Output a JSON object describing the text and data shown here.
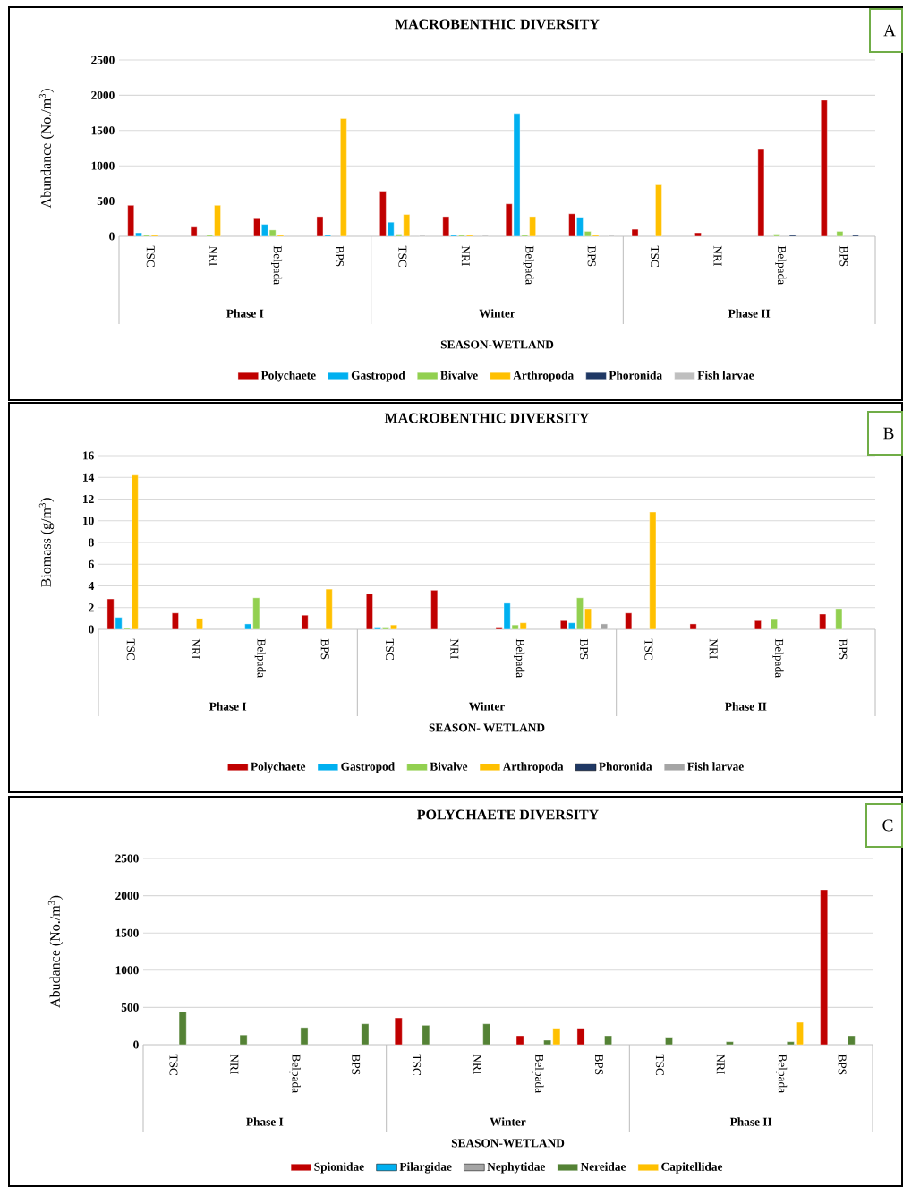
{
  "chart_data": [
    {
      "type": "bar",
      "title": "MACROBENTHIC DIVERSITY",
      "xlabel": "SEASON-WETLAND",
      "ylabel": "Abundance (No./m$^{3}$)",
      "categories": [
        "TSC",
        "NRI",
        "Belpada",
        "BPS",
        "TSC",
        "NRI",
        "Belpada",
        "BPS",
        "TSC",
        "NRI",
        "Belpada",
        "BPS"
      ],
      "series": [
        {
          "name": "Polychaete",
          "color": "#c00000",
          "values": [
            440,
            130,
            250,
            280,
            640,
            280,
            460,
            320,
            100,
            50,
            1230,
            1930
          ]
        },
        {
          "name": "Gastropod",
          "color": "#00b0f0",
          "values": [
            50,
            null,
            170,
            20,
            200,
            20,
            1740,
            270,
            null,
            null,
            null,
            null
          ]
        },
        {
          "name": "Bivalve",
          "color": "#92d050",
          "values": [
            20,
            20,
            90,
            null,
            30,
            20,
            20,
            70,
            null,
            null,
            30,
            70
          ]
        },
        {
          "name": "Arthropoda",
          "color": "#ffc000",
          "values": [
            20,
            440,
            20,
            1670,
            310,
            20,
            280,
            20,
            730,
            null,
            null,
            null
          ]
        },
        {
          "name": "Phoronida",
          "color": "#1f3864",
          "values": [
            null,
            null,
            null,
            null,
            null,
            null,
            null,
            null,
            null,
            null,
            20,
            20
          ]
        },
        {
          "name": "Fish larvae",
          "color": "#bfbfbf",
          "values": [
            null,
            null,
            null,
            null,
            20,
            20,
            null,
            20,
            null,
            null,
            null,
            null
          ]
        }
      ],
      "ylim": [
        0,
        2500
      ],
      "yticks": [
        0,
        500,
        1000,
        1500,
        2000,
        2500
      ],
      "grid": "y",
      "legend": "bottom",
      "annotations": [
        "Phase I",
        "Winter",
        "Phase II",
        "A"
      ]
    },
    {
      "type": "bar",
      "title": "MACROBENTHIC DIVERSITY",
      "xlabel": "SEASON- WETLAND",
      "ylabel": "Biomass (g/m$^{3}$)",
      "categories": [
        "TSC",
        "NRI",
        "Belpada",
        "BPS",
        "TSC",
        "NRI",
        "Belpada",
        "BPS",
        "TSC",
        "NRI",
        "Belpada",
        "BPS"
      ],
      "series": [
        {
          "name": "Polychaete",
          "color": "#c00000",
          "values": [
            2.8,
            1.5,
            null,
            1.3,
            3.3,
            3.6,
            0.2,
            0.8,
            1.5,
            0.5,
            0.8,
            1.4
          ]
        },
        {
          "name": "Gastropod",
          "color": "#00b0f0",
          "values": [
            1.1,
            null,
            0.5,
            null,
            0.2,
            null,
            2.4,
            0.6,
            null,
            null,
            null,
            null
          ]
        },
        {
          "name": "Bivalve",
          "color": "#92d050",
          "values": [
            0.1,
            null,
            2.9,
            null,
            0.2,
            null,
            0.4,
            2.9,
            null,
            null,
            0.9,
            1.9
          ]
        },
        {
          "name": "Arthropoda",
          "color": "#ffc000",
          "values": [
            14.2,
            1.0,
            null,
            3.7,
            0.4,
            null,
            0.6,
            1.9,
            10.8,
            null,
            null,
            null
          ]
        },
        {
          "name": "Phoronida",
          "color": "#1f3864",
          "values": [
            null,
            null,
            null,
            null,
            null,
            null,
            null,
            null,
            null,
            null,
            null,
            null
          ]
        },
        {
          "name": "Fish larvae",
          "color": "#a5a5a5",
          "values": [
            null,
            null,
            null,
            null,
            null,
            null,
            null,
            0.5,
            null,
            null,
            null,
            null
          ]
        }
      ],
      "ylim": [
        0,
        16
      ],
      "yticks": [
        0,
        2,
        4,
        6,
        8,
        10,
        12,
        14,
        16
      ],
      "grid": "y",
      "legend": "bottom",
      "annotations": [
        "Phase I",
        "Winter",
        "Phase II",
        "B"
      ]
    },
    {
      "type": "bar",
      "title": "POLYCHAETE DIVERSITY",
      "xlabel": "SEASON-WETLAND",
      "ylabel": "Abudance (No./m$^{3}$)",
      "categories": [
        "TSC",
        "NRI",
        "Belpada",
        "BPS",
        "TSC",
        "NRI",
        "Belpada",
        "BPS",
        "TSC",
        "NRI",
        "Belpada",
        "BPS"
      ],
      "series": [
        {
          "name": "Spionidae",
          "color": "#c00000",
          "values": [
            null,
            null,
            null,
            null,
            360,
            null,
            120,
            220,
            null,
            null,
            null,
            2080
          ]
        },
        {
          "name": "Pilargidae",
          "color": "#00b0f0",
          "values": [
            null,
            null,
            null,
            null,
            null,
            null,
            null,
            null,
            null,
            null,
            null,
            null
          ]
        },
        {
          "name": "Nephytidae",
          "color": "#a5a5a5",
          "values": [
            null,
            null,
            null,
            null,
            null,
            null,
            null,
            null,
            null,
            null,
            null,
            null
          ]
        },
        {
          "name": "Nereidae",
          "color": "#548235",
          "values": [
            440,
            130,
            230,
            280,
            260,
            280,
            60,
            120,
            100,
            40,
            40,
            120
          ]
        },
        {
          "name": "Capitellidae",
          "color": "#ffc000",
          "values": [
            null,
            null,
            null,
            null,
            null,
            null,
            220,
            null,
            null,
            null,
            300,
            null
          ]
        }
      ],
      "ylim": [
        0,
        2500
      ],
      "yticks": [
        0,
        500,
        1000,
        1500,
        2000,
        2500
      ],
      "grid": "y",
      "legend": "bottom",
      "annotations": [
        "Phase I",
        "Winter",
        "Phase II",
        "C"
      ]
    }
  ]
}
